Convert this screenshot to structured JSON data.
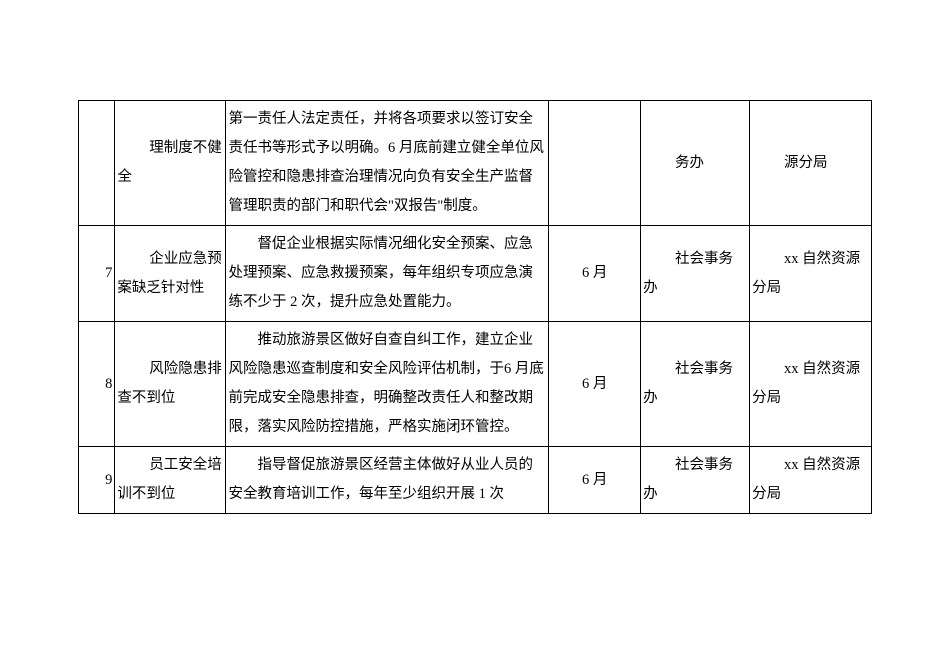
{
  "rows": [
    {
      "num": "",
      "topic": "理制度不健全",
      "desc": "第一责任人法定责任，并将各项要求以签订安全责任书等形式予以明确。6 月底前建立健全单位风险管控和隐患排查治理情况向负有安全生产监督管理职责的部门和职代会\"双报告\"制度。",
      "desc_indent": false,
      "date": "",
      "dept1": "务办",
      "dept2": "源分局"
    },
    {
      "num": "7",
      "topic": "企业应急预案缺乏针对性",
      "desc": "督促企业根据实际情况细化安全预案、应急处理预案、应急救援预案，每年组织专项应急演练不少于 2 次，提升应急处置能力。",
      "desc_indent": true,
      "date": "6 月",
      "dept1": "社会事务办",
      "dept2": "xx 自然资源分局"
    },
    {
      "num": "8",
      "topic": "风险隐患排查不到位",
      "desc": "推动旅游景区做好自查自纠工作，建立企业风险隐患巡查制度和安全风险评估机制，于6 月底前完成安全隐患排查，明确整改责任人和整改期限，落实风险防控措施，严格实施闭环管控。",
      "desc_indent": true,
      "date": "6 月",
      "dept1": "社会事务办",
      "dept2": "xx 自然资源分局"
    },
    {
      "num": "9",
      "topic": "员工安全培训不到位",
      "desc": "指导督促旅游景区经营主体做好从业人员的安全教育培训工作，每年至少组织开展 1 次",
      "desc_indent": true,
      "date": "6 月",
      "dept1": "社会事务办",
      "dept2": "xx 自然资源分局"
    }
  ]
}
